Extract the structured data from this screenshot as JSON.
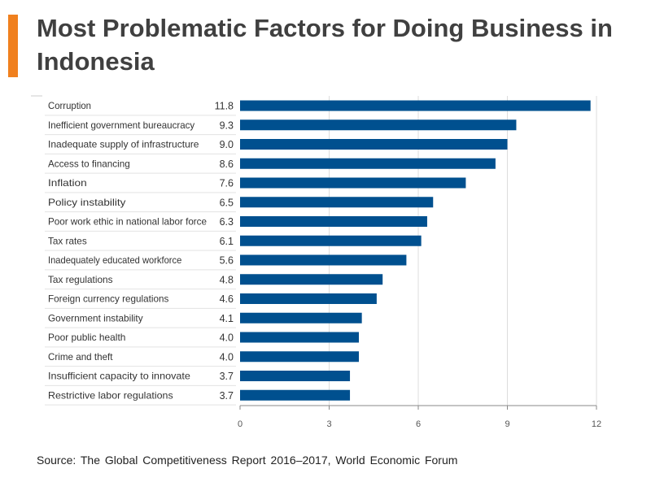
{
  "title": "Most Problematic Factors for Doing Business in Indonesia",
  "source": "Source: The Global Competitiveness Report 2016–2017, World Economic Forum",
  "colors": {
    "bar": "#00508f",
    "accent": "#f0801e"
  },
  "chart_data": {
    "type": "bar",
    "orientation": "horizontal",
    "categories": [
      "Corruption",
      "Inefficient government bureaucracy",
      "Inadequate supply of infrastructure",
      "Access to financing",
      "Inflation",
      "Policy instability",
      "Poor work ethic in national labor force",
      "Tax rates",
      "Inadequately educated workforce",
      "Tax regulations",
      "Foreign currency regulations",
      "Government instability",
      "Poor public health",
      "Crime and theft",
      "Insufficient capacity to innovate",
      "Restrictive labor regulations"
    ],
    "values": [
      11.8,
      9.3,
      9.0,
      8.6,
      7.6,
      6.5,
      6.3,
      6.1,
      5.6,
      4.8,
      4.6,
      4.1,
      4.0,
      4.0,
      3.7,
      3.7
    ],
    "value_labels": [
      "11.8",
      "9.3",
      "9.0",
      "8.6",
      "7.6",
      "6.5",
      "6.3",
      "6.1",
      "5.6",
      "4.8",
      "4.6",
      "4.1",
      "4.0",
      "4.0",
      "3.7",
      "3.7"
    ],
    "xlim": [
      0,
      12
    ],
    "xticks": [
      "0",
      "3",
      "6",
      "9",
      "12"
    ],
    "grid": true
  }
}
